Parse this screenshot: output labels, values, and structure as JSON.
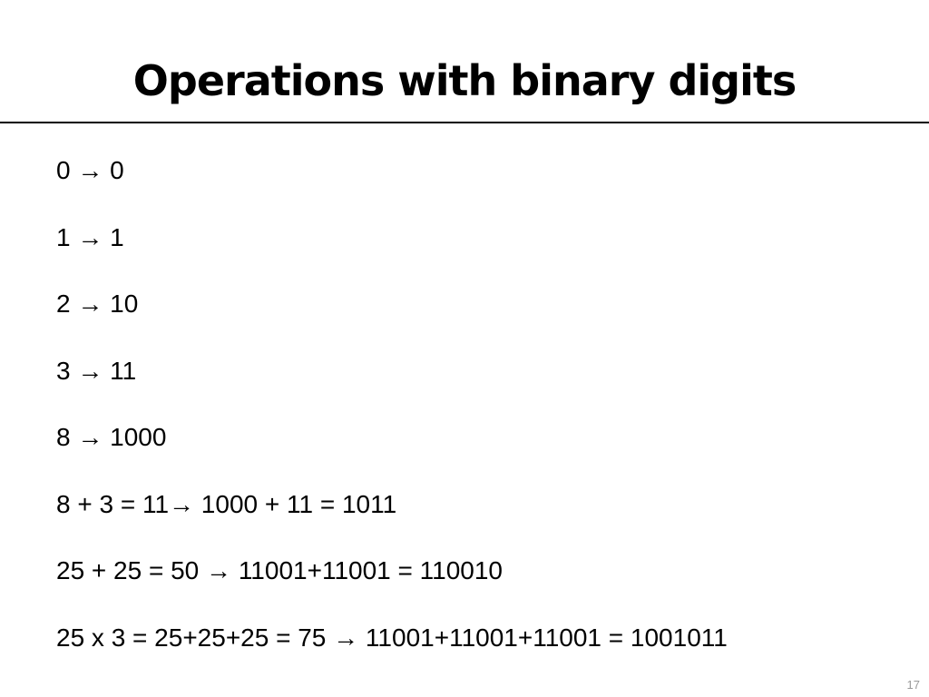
{
  "title": "Operations with binary digits",
  "lines": [
    "0 → 0",
    "1 → 1",
    "2 → 10",
    "3 → 11",
    "8 → 1000",
    "8 + 3 = 11→ 1000 + 11 = 1011",
    "25 + 25 = 50 → 11001+11001 = 110010",
    "25 x 3 = 25+25+25 = 75 → 11001+11001+11001 = 1001011"
  ],
  "page_number": "17"
}
